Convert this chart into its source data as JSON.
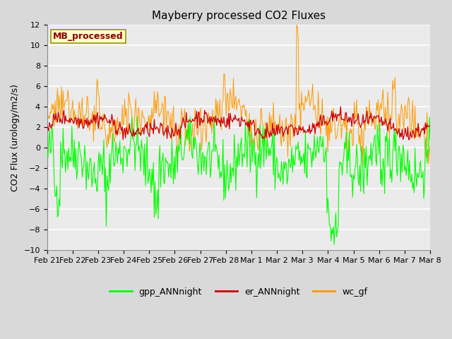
{
  "title": "Mayberry processed CO2 Fluxes",
  "ylabel": "CO2 Flux (urology/m2/s)",
  "ylim": [
    -10,
    12
  ],
  "yticks": [
    -10,
    -8,
    -6,
    -4,
    -2,
    0,
    2,
    4,
    6,
    8,
    10,
    12
  ],
  "xtick_labels": [
    "Feb 21",
    "Feb 22",
    "Feb 23",
    "Feb 24",
    "Feb 25",
    "Feb 26",
    "Feb 27",
    "Feb 28",
    "Mar 1",
    "Mar 2",
    "Mar 3",
    "Mar 4",
    "Mar 5",
    "Mar 6",
    "Mar 7",
    "Mar 8"
  ],
  "legend_label": "MB_processed",
  "series_labels": [
    "gpp_ANNnight",
    "er_ANNnight",
    "wc_gf"
  ],
  "series_colors": [
    "#00ff00",
    "#cc0000",
    "#ff9900"
  ],
  "bg_color": "#d9d9d9",
  "plot_bg_color": "#ebebeb",
  "title_fontsize": 11,
  "axis_fontsize": 9,
  "tick_fontsize": 8,
  "n_points": 480,
  "seed": 42
}
